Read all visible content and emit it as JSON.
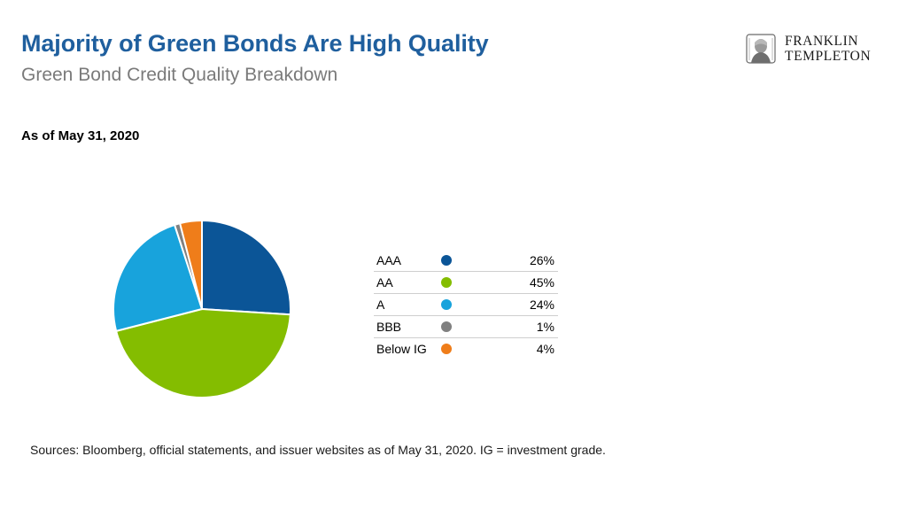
{
  "header": {
    "title": "Majority of Green Bonds Are High Quality",
    "subtitle": "Green Bond Credit Quality Breakdown"
  },
  "logo": {
    "line1": "FRANKLIN",
    "line2": "TEMPLETON"
  },
  "as_of": "As of May 31, 2020",
  "chart_data": {
    "type": "pie",
    "title": "",
    "slices": [
      {
        "label": "AAA",
        "value": 26,
        "display": "26%",
        "color": "#0b5597"
      },
      {
        "label": "AA",
        "value": 45,
        "display": "45%",
        "color": "#84bd00"
      },
      {
        "label": "A",
        "value": 24,
        "display": "24%",
        "color": "#18a3dc"
      },
      {
        "label": "BBB",
        "value": 1,
        "display": "1%",
        "color": "#808080"
      },
      {
        "label": "Below IG",
        "value": 4,
        "display": "4%",
        "color": "#ef7d1a"
      }
    ],
    "legend_position": "right",
    "slice_border_color": "#ffffff"
  },
  "footer": {
    "source": "Sources: Bloomberg, official statements, and issuer websites as of May 31, 2020. IG = investment grade."
  }
}
